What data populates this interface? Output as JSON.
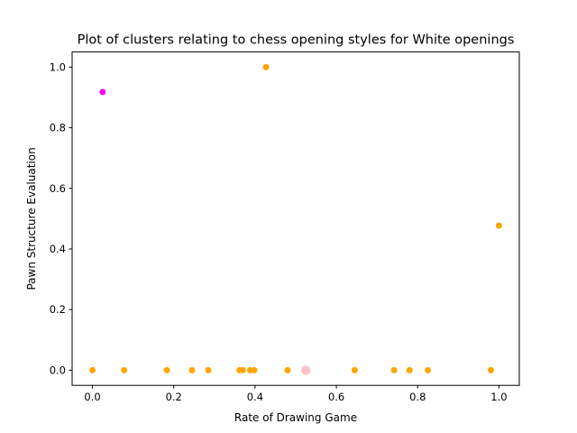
{
  "chart_data": {
    "type": "scatter",
    "title": "Plot of clusters relating to chess opening styles for White openings",
    "xlabel": "Rate of Drawing Game",
    "ylabel": "Pawn Structure Evaluation",
    "xlim": [
      -0.05,
      1.05
    ],
    "ylim": [
      -0.05,
      1.05
    ],
    "xticks": [
      0.0,
      0.2,
      0.4,
      0.6,
      0.8,
      1.0
    ],
    "yticks": [
      0.0,
      0.2,
      0.4,
      0.6,
      0.8,
      1.0
    ],
    "xtick_labels": [
      "0.0",
      "0.2",
      "0.4",
      "0.6",
      "0.8",
      "1.0"
    ],
    "ytick_labels": [
      "0.0",
      "0.2",
      "0.4",
      "0.6",
      "0.8",
      "1.0"
    ],
    "grid": false,
    "series": [
      {
        "color": "#ffa500",
        "marker_size": "small",
        "points": [
          {
            "x": 0.0,
            "y": 0.0
          },
          {
            "x": 0.078,
            "y": 0.0
          },
          {
            "x": 0.183,
            "y": 0.0
          },
          {
            "x": 0.245,
            "y": 0.0
          },
          {
            "x": 0.285,
            "y": 0.0
          },
          {
            "x": 0.362,
            "y": 0.0
          },
          {
            "x": 0.37,
            "y": 0.0
          },
          {
            "x": 0.388,
            "y": 0.0
          },
          {
            "x": 0.398,
            "y": 0.0
          },
          {
            "x": 0.48,
            "y": 0.0
          },
          {
            "x": 0.645,
            "y": 0.0
          },
          {
            "x": 0.742,
            "y": 0.0
          },
          {
            "x": 0.78,
            "y": 0.0
          },
          {
            "x": 0.825,
            "y": 0.0
          },
          {
            "x": 0.98,
            "y": 0.0
          },
          {
            "x": 0.427,
            "y": 1.0
          },
          {
            "x": 1.0,
            "y": 0.477
          }
        ]
      },
      {
        "color": "#ff00ff",
        "marker_size": "small",
        "points": [
          {
            "x": 0.025,
            "y": 0.918
          }
        ]
      },
      {
        "color": "#ffc0cb",
        "marker_size": "large",
        "points": [
          {
            "x": 0.525,
            "y": 0.0
          }
        ]
      }
    ]
  }
}
